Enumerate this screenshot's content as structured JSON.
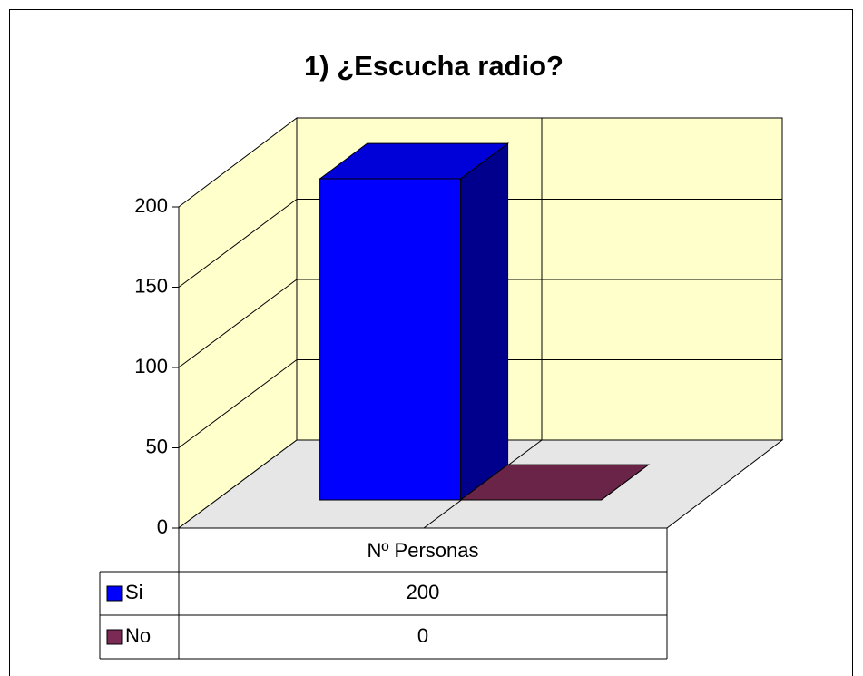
{
  "chart_data": {
    "type": "bar3d",
    "title": "1) ¿Escucha radio?",
    "categories": [
      "Nº Personas"
    ],
    "series": [
      {
        "name": "Si",
        "color": "#0000ff",
        "values": [
          200
        ]
      },
      {
        "name": "No",
        "color": "#7b2a55",
        "values": [
          0
        ]
      }
    ],
    "ylim": [
      0,
      200
    ],
    "yticks": [
      0,
      50,
      100,
      150,
      200
    ],
    "grid": true
  }
}
